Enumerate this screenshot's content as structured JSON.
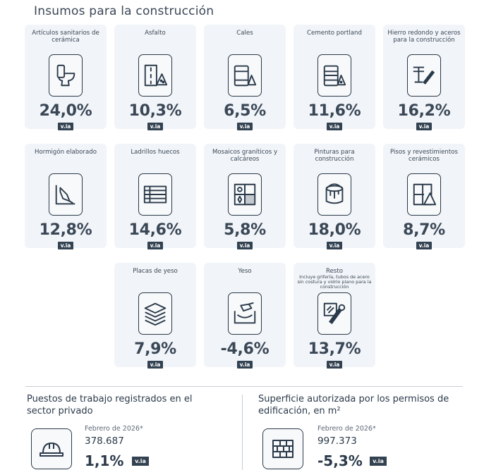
{
  "title": "Insumos para la construcción",
  "badge_label": "v.ia",
  "cards": [
    {
      "label": "Artículos sanitarios de cerámica",
      "value": "24,0%",
      "icon": "toilet-icon"
    },
    {
      "label": "Asfalto",
      "value": "10,3%",
      "icon": "asphalt-icon"
    },
    {
      "label": "Cales",
      "value": "6,5%",
      "icon": "lime-bags-icon"
    },
    {
      "label": "Cemento portland",
      "value": "11,6%",
      "icon": "cement-bags-icon"
    },
    {
      "label": "Hierro redondo y aceros para la construcción",
      "value": "16,2%",
      "icon": "steel-bars-icon"
    },
    {
      "label": "Hormigón elaborado",
      "value": "12,8%",
      "icon": "concrete-trowel-icon"
    },
    {
      "label": "Ladrillos huecos",
      "value": "14,6%",
      "icon": "hollow-brick-icon"
    },
    {
      "label": "Mosaicos graníticos y calcáreos",
      "value": "5,8%",
      "icon": "mosaic-tiles-icon"
    },
    {
      "label": "Pinturas para construcción",
      "value": "18,0%",
      "icon": "paint-bucket-icon"
    },
    {
      "label": "Pisos y revestimientos cerámicos",
      "value": "8,7%",
      "icon": "ceramic-floor-icon"
    },
    {
      "label": "Placas de yeso",
      "value": "7,9%",
      "icon": "plasterboard-icon"
    },
    {
      "label": "Yeso",
      "value": "-4,6%",
      "icon": "plaster-box-icon"
    },
    {
      "label": "Resto",
      "note": "Incluye grifería, tubos de acero sin costura y vidrio plano para la construcción",
      "value": "13,7%",
      "icon": "pipe-glass-icon"
    }
  ],
  "stats": {
    "jobs": {
      "title": "Puestos de trabajo registrados en el sector privado",
      "date": "Febrero de 2026*",
      "number": "378.687",
      "variation": "1,1%",
      "icon": "hard-hat-icon"
    },
    "area": {
      "title": "Superficie autorizada por los permisos de edificación, en m²",
      "date": "Febrero de 2026*",
      "number": "997.373",
      "variation": "-5,3%",
      "icon": "brick-wall-icon"
    }
  }
}
